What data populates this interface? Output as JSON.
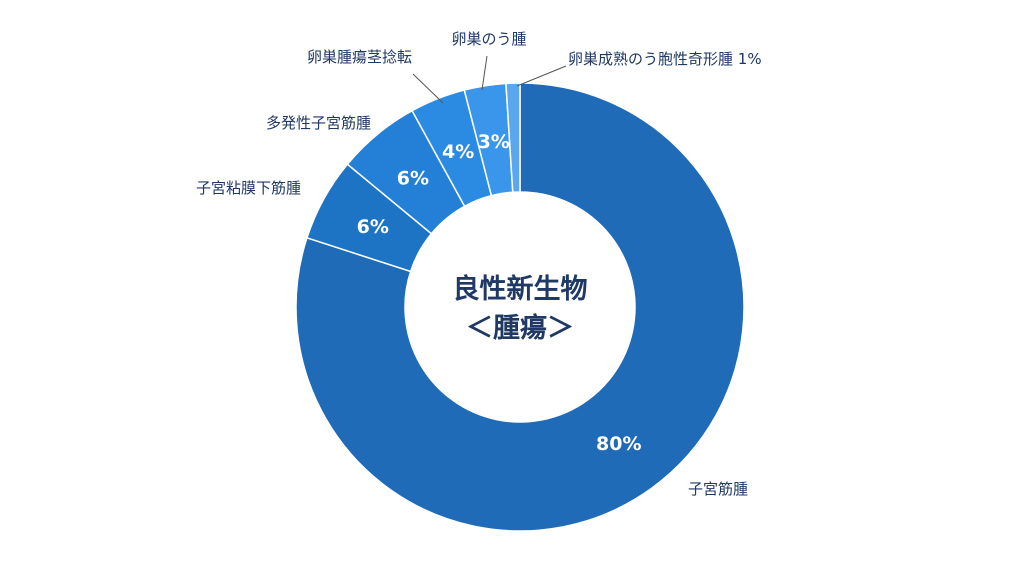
{
  "chart_data": {
    "type": "pie",
    "title": "良性新生物\n＜腫瘍＞",
    "title_lines": [
      "良性新生物",
      "＜腫瘍＞"
    ],
    "start_angle_deg": 0,
    "direction": "clockwise",
    "legend": "none",
    "slices": [
      {
        "label": "子宮筋腫",
        "value": 80,
        "value_label": "80%",
        "color": "#1f6bb8"
      },
      {
        "label": "子宮粘膜下筋腫",
        "value": 6,
        "value_label": "6%",
        "color": "#1e74c4"
      },
      {
        "label": "多発性子宮筋腫",
        "value": 6,
        "value_label": "6%",
        "color": "#2380d6"
      },
      {
        "label": "卵巣腫瘍茎捻転",
        "value": 4,
        "value_label": "4%",
        "color": "#2b8be3"
      },
      {
        "label": "卵巣のう腫",
        "value": 3,
        "value_label": "3%",
        "color": "#3a96ea"
      },
      {
        "label": "卵巣成熟のう胞性奇形腫",
        "value": 1,
        "value_label": "",
        "color": "#5aa7ef"
      }
    ],
    "outside_labels": [
      "子宮筋腫",
      "子宮粘膜下筋腫",
      "多発性子宮筋腫",
      "卵巣腫瘍茎捻転",
      "卵巣のう腫",
      "卵巣成熟のう胞性奇形腫 1%"
    ]
  }
}
